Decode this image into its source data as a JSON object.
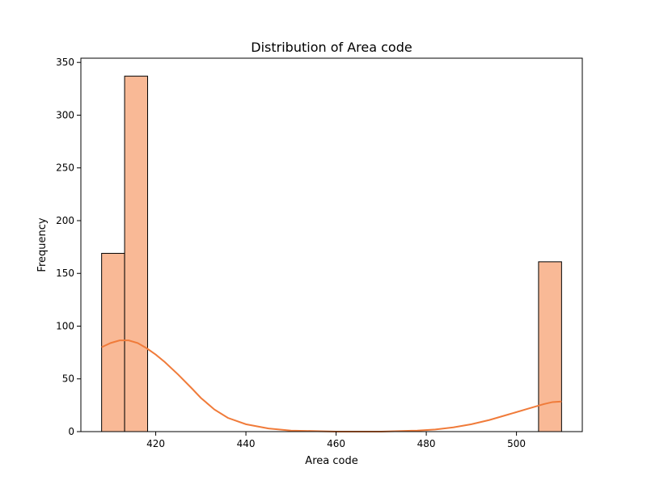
{
  "chart_data": {
    "type": "bar",
    "title": "Distribution of Area code",
    "xlabel": "Area code",
    "ylabel": "Frequency",
    "xlim": [
      403.4,
      514.6
    ],
    "ylim": [
      0,
      354
    ],
    "x_ticks": [
      420,
      440,
      460,
      480,
      500
    ],
    "y_ticks": [
      0,
      50,
      100,
      150,
      200,
      250,
      300,
      350
    ],
    "grid": false,
    "bins": [
      {
        "start": 408.0,
        "end": 413.1,
        "count": 169
      },
      {
        "start": 413.1,
        "end": 418.2,
        "count": 337
      },
      {
        "start": 418.2,
        "end": 423.3,
        "count": 0
      },
      {
        "start": 423.3,
        "end": 428.4,
        "count": 0
      },
      {
        "start": 428.4,
        "end": 433.5,
        "count": 0
      },
      {
        "start": 433.5,
        "end": 438.6,
        "count": 0
      },
      {
        "start": 438.6,
        "end": 443.7,
        "count": 0
      },
      {
        "start": 443.7,
        "end": 448.8,
        "count": 0
      },
      {
        "start": 448.8,
        "end": 453.9,
        "count": 0
      },
      {
        "start": 453.9,
        "end": 459.0,
        "count": 0
      },
      {
        "start": 459.0,
        "end": 464.1,
        "count": 0
      },
      {
        "start": 464.1,
        "end": 469.2,
        "count": 0
      },
      {
        "start": 469.2,
        "end": 474.3,
        "count": 0
      },
      {
        "start": 474.3,
        "end": 479.4,
        "count": 0
      },
      {
        "start": 479.4,
        "end": 484.5,
        "count": 0
      },
      {
        "start": 484.5,
        "end": 489.6,
        "count": 0
      },
      {
        "start": 489.6,
        "end": 494.7,
        "count": 0
      },
      {
        "start": 494.7,
        "end": 499.8,
        "count": 0
      },
      {
        "start": 499.8,
        "end": 504.9,
        "count": 0
      },
      {
        "start": 504.9,
        "end": 510.0,
        "count": 161
      }
    ],
    "kde": {
      "x": [
        408,
        410,
        412,
        414,
        416,
        418,
        420,
        422,
        425,
        428,
        430,
        433,
        436,
        440,
        445,
        450,
        460,
        470,
        478,
        482,
        486,
        490,
        494,
        498,
        502,
        506,
        508,
        510
      ],
      "y": [
        80,
        84,
        86.5,
        86.5,
        84,
        79,
        73,
        66,
        54,
        41,
        32,
        21,
        13,
        7,
        3,
        1,
        0,
        0,
        1,
        2,
        4,
        7,
        11,
        16,
        21,
        26,
        28,
        28.5
      ]
    },
    "bar_color": "#f9b996",
    "bar_edge_color": "#000000",
    "kde_color": "#f07b3a"
  }
}
